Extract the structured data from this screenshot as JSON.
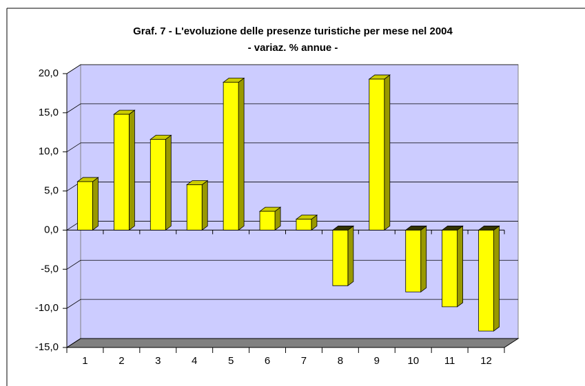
{
  "chart_data": {
    "type": "bar3d",
    "title": "Graf. 7 - L'evoluzione delle presenze turistiche per mese nel 2004",
    "subtitle": "- variaz. % annue -",
    "categories": [
      "1",
      "2",
      "3",
      "4",
      "5",
      "6",
      "7",
      "8",
      "9",
      "10",
      "11",
      "12"
    ],
    "values": [
      6.2,
      14.8,
      11.6,
      5.8,
      18.9,
      2.4,
      1.4,
      -7.1,
      19.3,
      -7.9,
      -9.8,
      -12.9
    ],
    "color": "#ffff00",
    "ylim": [
      -15,
      20
    ],
    "yticks": [
      {
        "value": -15,
        "label": "-15,0"
      },
      {
        "value": -10,
        "label": "-10,0"
      },
      {
        "value": -5,
        "label": "-5,0"
      },
      {
        "value": 0,
        "label": "0,0"
      },
      {
        "value": 5,
        "label": "5,0"
      },
      {
        "value": 10,
        "label": "10,0"
      },
      {
        "value": 15,
        "label": "15,0"
      },
      {
        "value": 20,
        "label": "20,0"
      }
    ],
    "grid": true
  }
}
